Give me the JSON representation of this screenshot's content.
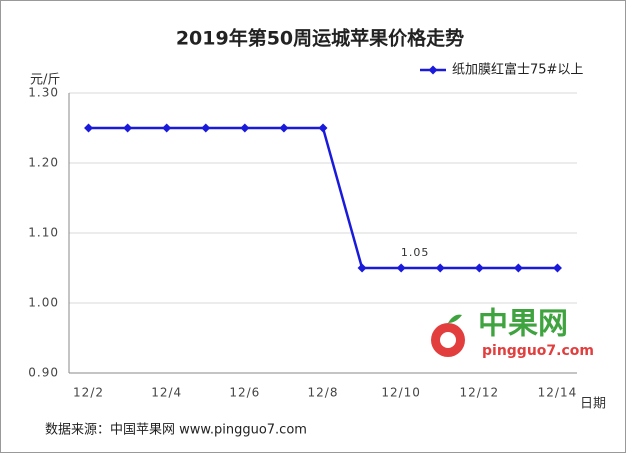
{
  "chart_data": {
    "type": "line",
    "title": "2019年第50周运城苹果价格走势",
    "y_label": "元/斤",
    "x_label": "日期",
    "categories": [
      "12/2",
      null,
      "12/4",
      null,
      "12/6",
      null,
      "12/8",
      null,
      "12/10",
      null,
      "12/12",
      null,
      "12/14"
    ],
    "series": [
      {
        "name": "纸加膜红富士75#以上",
        "color": "#1a1adc",
        "values": [
          1.25,
          1.25,
          1.25,
          1.25,
          1.25,
          1.25,
          1.25,
          1.05,
          1.05,
          1.05,
          1.05,
          1.05,
          1.05
        ],
        "value_labels": [
          null,
          null,
          null,
          null,
          null,
          null,
          null,
          null,
          "1.05",
          null,
          null,
          null,
          null
        ]
      }
    ],
    "ylim": [
      0.9,
      1.3
    ],
    "yticks": [
      {
        "value": 0.9,
        "label": "0.90"
      },
      {
        "value": 1.0,
        "label": "1.00"
      },
      {
        "value": 1.1,
        "label": "1.10"
      },
      {
        "value": 1.2,
        "label": "1.20"
      },
      {
        "value": 1.3,
        "label": "1.30"
      }
    ],
    "grid": true,
    "legend": "top-right",
    "source": "数据来源：中国苹果网 www.pingguo7.com"
  },
  "watermark": {
    "name": "中果网",
    "url": "pingguo7.com"
  }
}
